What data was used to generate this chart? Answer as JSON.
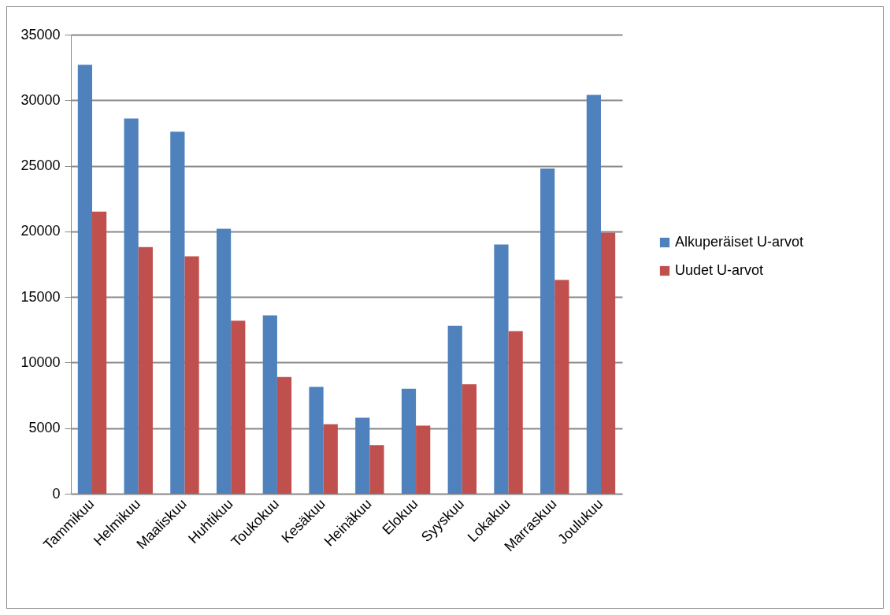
{
  "chart_data": {
    "type": "bar",
    "categories": [
      "Tammikuu",
      "Helmikuu",
      "Maaliskuu",
      "Huhtikuu",
      "Toukokuu",
      "Kesäkuu",
      "Heinäkuu",
      "Elokuu",
      "Syyskuu",
      "Lokakuu",
      "Marraskuu",
      "Joulukuu"
    ],
    "series": [
      {
        "name": "Alkuperäiset U-arvot",
        "color": "#4f81bd",
        "values": [
          32700,
          28600,
          27600,
          20200,
          13600,
          8150,
          5800,
          8000,
          12800,
          19000,
          24800,
          30400
        ]
      },
      {
        "name": "Uudet U-arvot",
        "color": "#c0504d",
        "values": [
          21500,
          18800,
          18100,
          13200,
          8900,
          5300,
          3700,
          5200,
          8350,
          12400,
          16300,
          19900
        ]
      }
    ],
    "ylim": [
      0,
      35000
    ],
    "yticks": [
      0,
      5000,
      10000,
      15000,
      20000,
      25000,
      30000,
      35000
    ],
    "grid": "y",
    "legend": "right"
  }
}
